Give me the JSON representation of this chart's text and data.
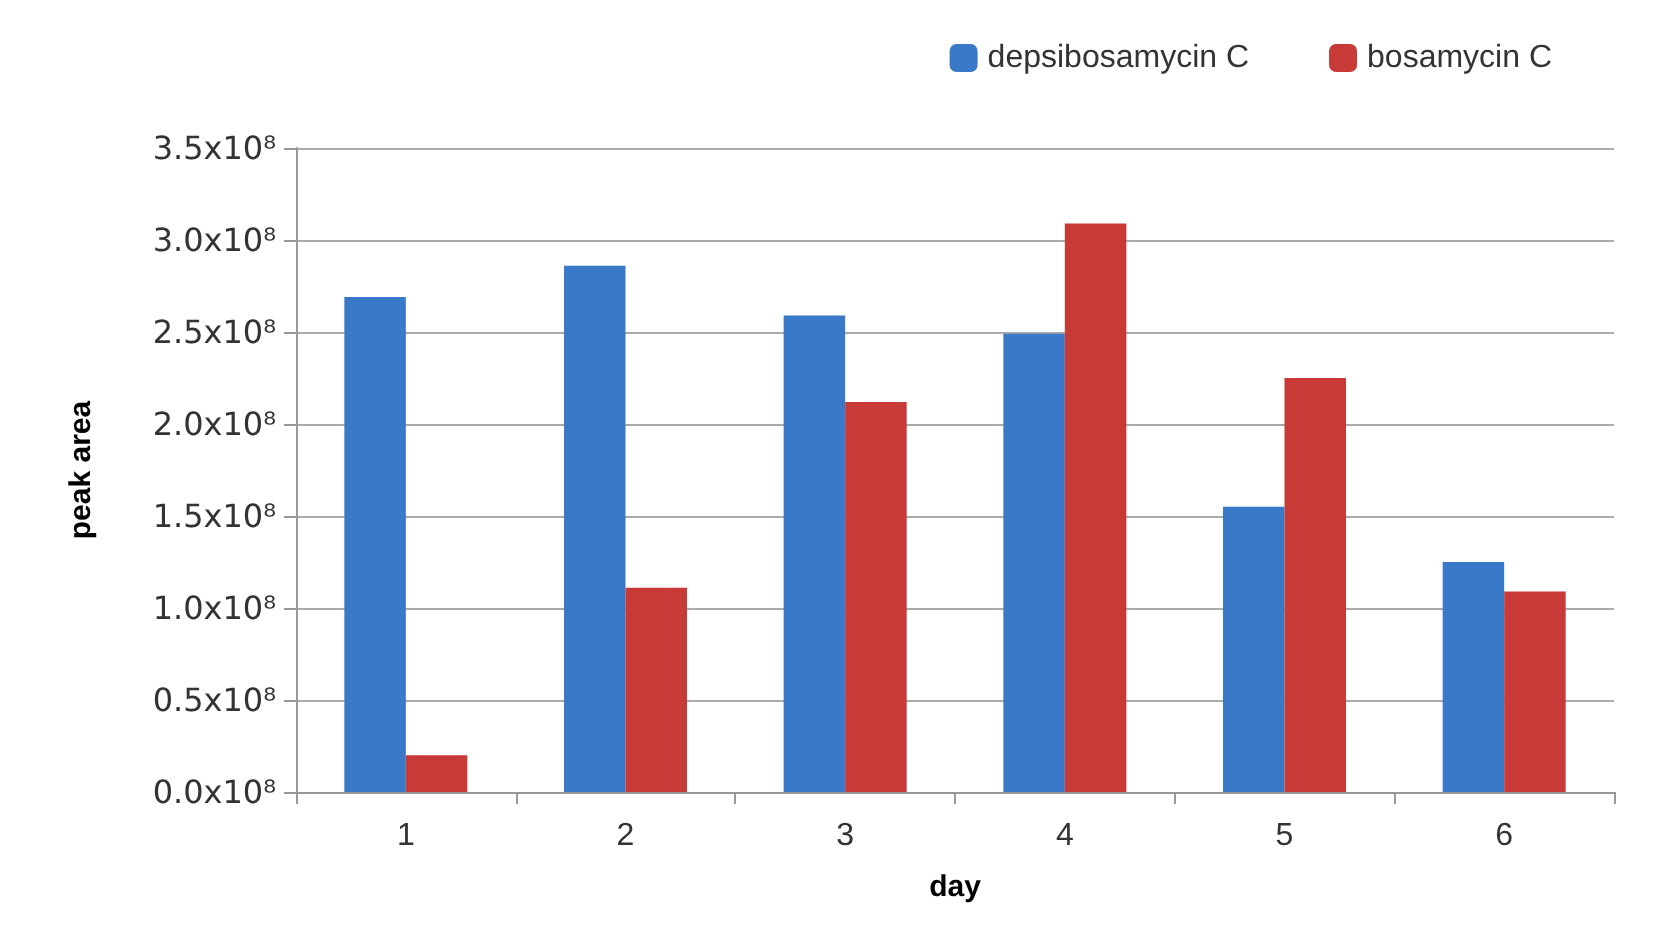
{
  "chart_data": {
    "type": "bar",
    "xlabel": "day",
    "ylabel": "peak area",
    "categories": [
      "1",
      "2",
      "3",
      "4",
      "5",
      "6"
    ],
    "series": [
      {
        "name": "depsibosamycin C",
        "color": "#3a78c8",
        "values": [
          269000000,
          286000000,
          259000000,
          249000000,
          155000000,
          125000000
        ]
      },
      {
        "name": "bosamycin C",
        "color": "#c83a37",
        "values": [
          20000000,
          111000000,
          212000000,
          309000000,
          225000000,
          109000000
        ]
      }
    ],
    "ylim": [
      0,
      350000000
    ],
    "yticks": [
      {
        "value": 0,
        "label": "0.0x10⁸"
      },
      {
        "value": 50000000,
        "label": "0.5x10⁸"
      },
      {
        "value": 100000000,
        "label": "1.0x10⁸"
      },
      {
        "value": 150000000,
        "label": "1.5x10⁸"
      },
      {
        "value": 200000000,
        "label": "2.0x10⁸"
      },
      {
        "value": 250000000,
        "label": "2.5x10⁸"
      },
      {
        "value": 300000000,
        "label": "3.0x10⁸"
      },
      {
        "value": 350000000,
        "label": "3.5x10⁸"
      }
    ],
    "grid": "y",
    "legend": "top right"
  }
}
